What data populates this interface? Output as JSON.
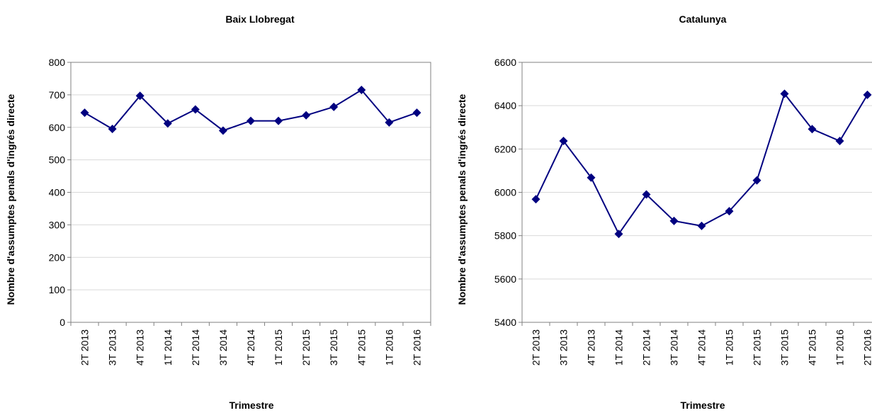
{
  "chart_data": [
    {
      "type": "line",
      "title": "Baix Llobregat",
      "x_label": "Trimestre",
      "y_label": "Nombre d'assumptes penals d'ingrés directe",
      "categories": [
        "2T 2013",
        "3T 2013",
        "4T 2013",
        "1T 2014",
        "2T 2014",
        "3T 2014",
        "4T 2014",
        "1T 2015",
        "2T 2015",
        "3T 2015",
        "4T 2015",
        "1T 2016",
        "2T 2016"
      ],
      "values": [
        645,
        595,
        697,
        612,
        655,
        590,
        620,
        620,
        637,
        663,
        715,
        615,
        645
      ],
      "color": "#000080",
      "ylim": [
        0,
        800
      ],
      "yticks": [
        0,
        100,
        200,
        300,
        400,
        500,
        600,
        700,
        800
      ],
      "grid": true
    },
    {
      "type": "line",
      "title": "Catalunya",
      "x_label": "Trimestre",
      "y_label": "Nombre d'assumptes penals d'ingrés directe",
      "categories": [
        "2T 2013",
        "3T 2013",
        "4T 2013",
        "1T 2014",
        "2T 2014",
        "3T 2014",
        "4T 2014",
        "1T 2015",
        "2T 2015",
        "3T 2015",
        "4T 2015",
        "1T 2016",
        "2T 2016"
      ],
      "values": [
        5968,
        6237,
        6068,
        5808,
        5990,
        5868,
        5845,
        5913,
        6055,
        6455,
        6292,
        6237,
        6450
      ],
      "color": "#000080",
      "ylim": [
        5400,
        6600
      ],
      "yticks": [
        5400,
        5600,
        5800,
        6000,
        6200,
        6400,
        6600
      ],
      "grid": true
    }
  ]
}
